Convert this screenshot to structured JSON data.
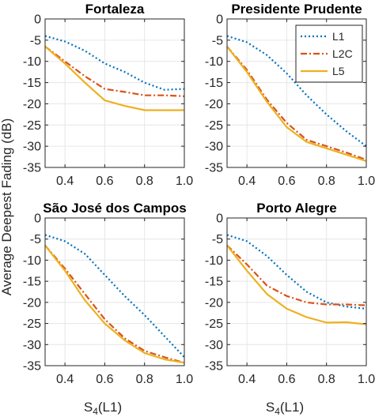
{
  "figure": {
    "ylabel": "Average Deepest Fading (dB)",
    "xlabel_main": "S",
    "xlabel_sub": "4",
    "xlabel_rest": "(L1)"
  },
  "styles": {
    "L1": {
      "color": "#0072BD",
      "dash": "dotted"
    },
    "L2C": {
      "color": "#D95319",
      "dash": "dashdot"
    },
    "L5": {
      "color": "#EDB120",
      "dash": "solid"
    }
  },
  "chart_data": [
    {
      "type": "line",
      "title": "Fortaleza",
      "xlim": [
        0.3,
        1.0
      ],
      "ylim": [
        -35,
        0
      ],
      "xticks": [
        "0.4",
        "0.6",
        "0.8",
        "1.0"
      ],
      "yticks": [
        "0",
        "-5",
        "-10",
        "-15",
        "-20",
        "-25",
        "-30",
        "-35"
      ],
      "grid": true,
      "x": [
        0.3,
        0.4,
        0.5,
        0.6,
        0.7,
        0.8,
        0.9,
        1.0
      ],
      "series": [
        {
          "name": "L1",
          "values": [
            -4,
            -5.3,
            -7.5,
            -10.5,
            -12.5,
            -15,
            -16.7,
            -16.5
          ]
        },
        {
          "name": "L2C",
          "values": [
            -6.5,
            -10,
            -13.5,
            -16.5,
            -17.2,
            -18,
            -18,
            -18.2
          ]
        },
        {
          "name": "L5",
          "values": [
            -6.5,
            -10.5,
            -15,
            -19.2,
            -20.5,
            -21.5,
            -21.5,
            -21.5
          ]
        }
      ]
    },
    {
      "type": "line",
      "title": "Presidente Prudente",
      "xlim": [
        0.3,
        1.0
      ],
      "ylim": [
        -35,
        0
      ],
      "xticks": [
        "0.4",
        "0.6",
        "0.8",
        "1.0"
      ],
      "yticks": [
        "0",
        "-5",
        "-10",
        "-15",
        "-20",
        "-25",
        "-30",
        "-35"
      ],
      "grid": true,
      "legend": "top-right",
      "x": [
        0.3,
        0.4,
        0.5,
        0.6,
        0.7,
        0.8,
        0.9,
        1.0
      ],
      "series": [
        {
          "name": "L1",
          "values": [
            -4,
            -5.5,
            -8.5,
            -12.8,
            -18,
            -22.5,
            -26.5,
            -30
          ]
        },
        {
          "name": "L2C",
          "values": [
            -6.5,
            -12,
            -19,
            -24.5,
            -28.5,
            -30,
            -31.5,
            -33.2
          ]
        },
        {
          "name": "L5",
          "values": [
            -6.5,
            -12.5,
            -19.5,
            -25.5,
            -29,
            -30.5,
            -32,
            -33.5
          ]
        }
      ]
    },
    {
      "type": "line",
      "title": "São José dos Campos",
      "xlim": [
        0.3,
        1.0
      ],
      "ylim": [
        -35,
        0
      ],
      "xticks": [
        "0.4",
        "0.6",
        "0.8",
        "1.0"
      ],
      "yticks": [
        "0",
        "-5",
        "-10",
        "-15",
        "-20",
        "-25",
        "-30",
        "-35"
      ],
      "grid": true,
      "x": [
        0.3,
        0.4,
        0.5,
        0.6,
        0.7,
        0.8,
        0.9,
        1.0
      ],
      "series": [
        {
          "name": "L1",
          "values": [
            -4,
            -5.5,
            -8.5,
            -13.5,
            -18.5,
            -23,
            -28,
            -33
          ]
        },
        {
          "name": "L2C",
          "values": [
            -6.5,
            -12,
            -18,
            -24,
            -28.5,
            -31.5,
            -33,
            -34.3
          ]
        },
        {
          "name": "L5",
          "values": [
            -6.5,
            -12.5,
            -19.5,
            -25,
            -29,
            -32,
            -33.5,
            -34.3
          ]
        }
      ]
    },
    {
      "type": "line",
      "title": "Porto Alegre",
      "xlim": [
        0.3,
        1.0
      ],
      "ylim": [
        -35,
        0
      ],
      "xticks": [
        "0.4",
        "0.6",
        "0.8",
        "1.0"
      ],
      "yticks": [
        "0",
        "-5",
        "-10",
        "-15",
        "-20",
        "-25",
        "-30",
        "-35"
      ],
      "grid": true,
      "x": [
        0.3,
        0.4,
        0.5,
        0.6,
        0.7,
        0.8,
        0.9,
        1.0
      ],
      "series": [
        {
          "name": "L1",
          "values": [
            -4,
            -5.5,
            -9,
            -13.5,
            -17.5,
            -20,
            -21,
            -21.5
          ]
        },
        {
          "name": "L2C",
          "values": [
            -6.5,
            -11,
            -16,
            -18.5,
            -20,
            -20.5,
            -20.5,
            -20.7
          ]
        },
        {
          "name": "L5",
          "values": [
            -6.5,
            -12.5,
            -18,
            -21.5,
            -23.5,
            -24.8,
            -24.7,
            -25.2
          ]
        }
      ]
    }
  ]
}
